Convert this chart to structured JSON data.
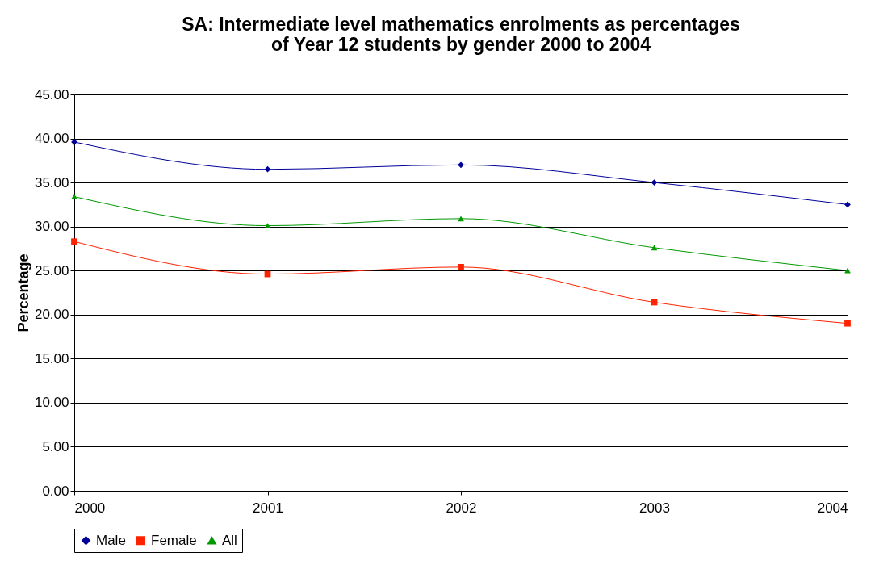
{
  "chart_data": {
    "type": "line",
    "title": [
      "SA: Intermediate level mathematics enrolments as percentages",
      "of Year 12 students by gender 2000 to 2004"
    ],
    "ylabel": "Percentage",
    "categories": [
      "2000",
      "2001",
      "2002",
      "2003",
      "2004"
    ],
    "series": [
      {
        "name": "Male",
        "color": "#000099",
        "marker": "diamond",
        "values": [
          39.6,
          36.5,
          37.0,
          35.0,
          32.5
        ]
      },
      {
        "name": "Female",
        "color": "#ff2200",
        "marker": "square",
        "values": [
          28.3,
          24.6,
          25.4,
          21.4,
          19.0
        ]
      },
      {
        "name": "All",
        "color": "#009900",
        "marker": "triangle",
        "values": [
          33.4,
          30.1,
          30.9,
          27.6,
          25.0
        ]
      }
    ],
    "ylim": [
      0,
      45
    ],
    "yticks": [
      {
        "value": 0,
        "label": "0.00"
      },
      {
        "value": 5,
        "label": "5.00"
      },
      {
        "value": 10,
        "label": "10.00"
      },
      {
        "value": 15,
        "label": "15.00"
      },
      {
        "value": 20,
        "label": "20.00"
      },
      {
        "value": 25,
        "label": "25.00"
      },
      {
        "value": 30,
        "label": "30.00"
      },
      {
        "value": 35,
        "label": "35.00"
      },
      {
        "value": 40,
        "label": "40.00"
      },
      {
        "value": 45,
        "label": "45.00"
      }
    ],
    "grid": "y",
    "legend": "bottom",
    "line_style": "solid"
  }
}
